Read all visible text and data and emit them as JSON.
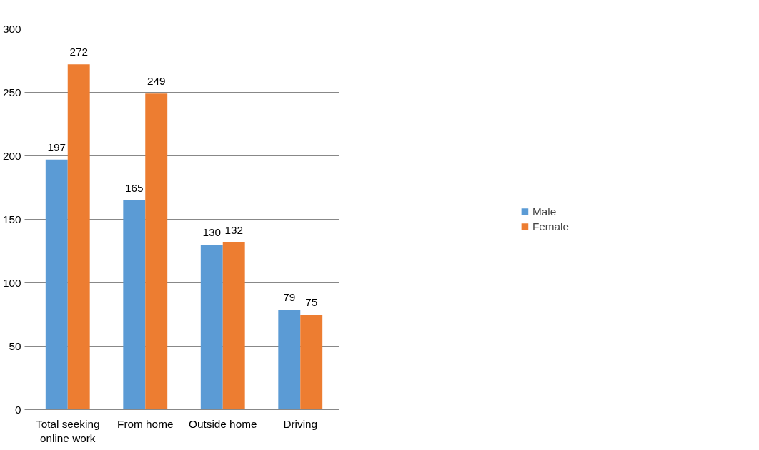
{
  "chart_data": {
    "type": "bar",
    "categories": [
      "Total seeking\nonline work",
      "From home",
      "Outside home",
      "Driving"
    ],
    "series": [
      {
        "name": "Male",
        "color": "#5b9bd5",
        "values": [
          197,
          165,
          130,
          79
        ]
      },
      {
        "name": "Female",
        "color": "#ed7d31",
        "values": [
          272,
          249,
          132,
          75
        ]
      }
    ],
    "ylim": [
      0,
      300
    ],
    "yticks": [
      0,
      50,
      100,
      150,
      200,
      250,
      300
    ],
    "grid": "y",
    "legend": "right",
    "data_labels": true
  }
}
